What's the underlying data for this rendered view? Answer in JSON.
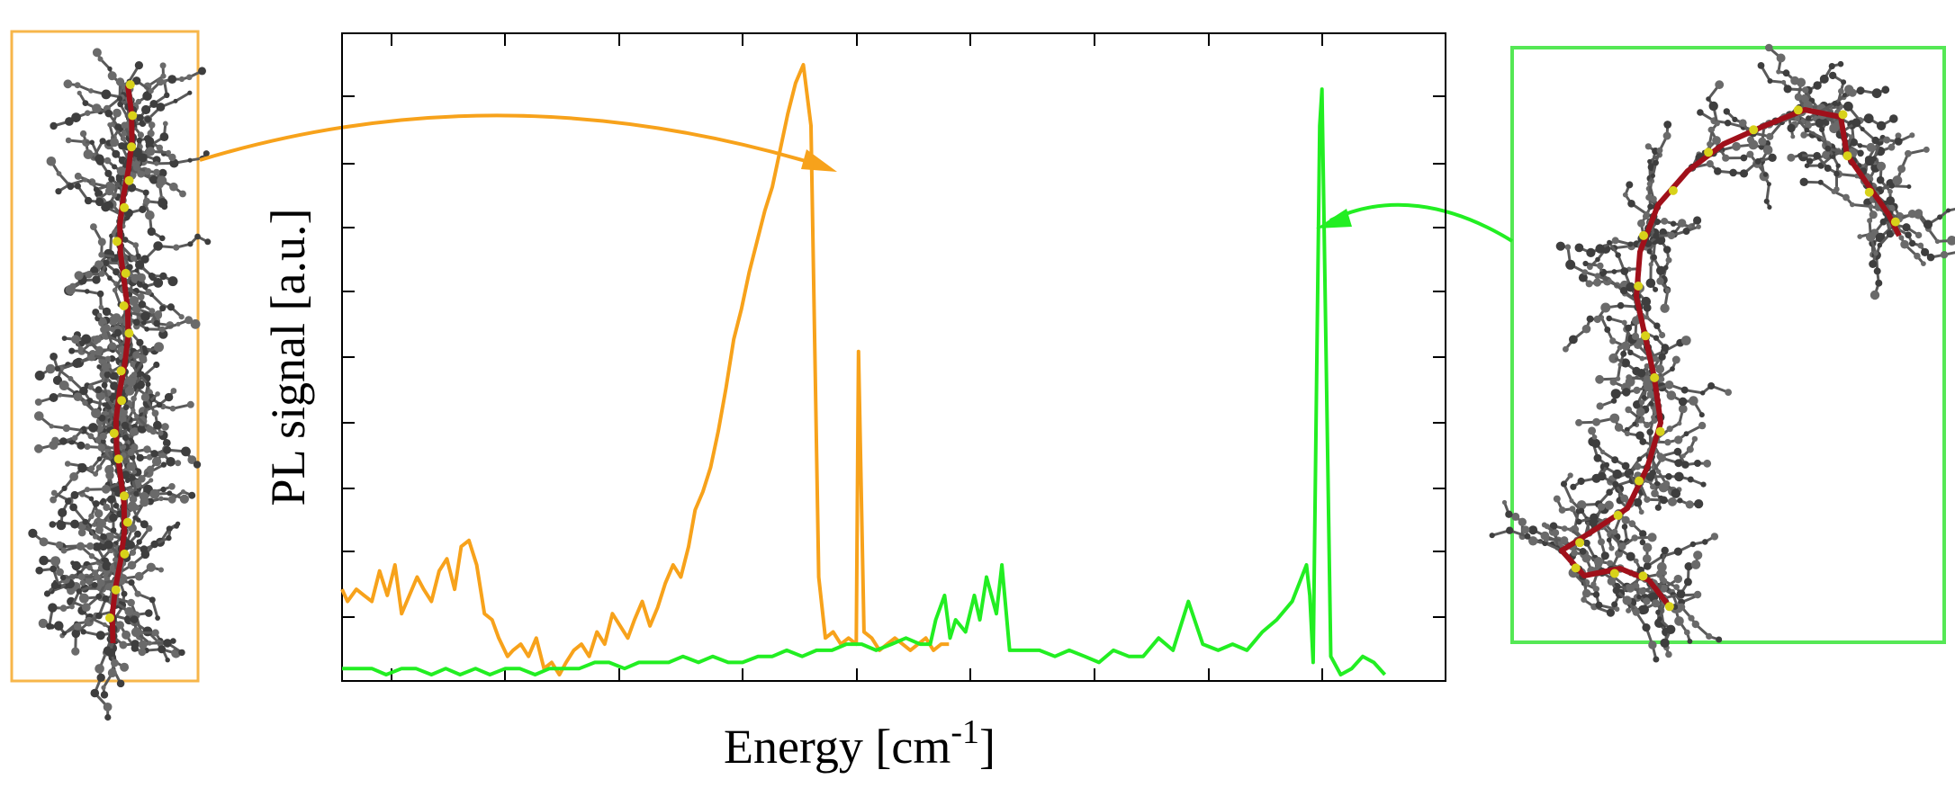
{
  "chart_data": {
    "type": "line",
    "xlabel": "Energy [cm",
    "xlabel_sup": "-1",
    "xlabel_close": "]",
    "ylabel": "PL signal [a.u.]",
    "xlim": [
      0,
      1
    ],
    "ylim": [
      0,
      1
    ],
    "grid": false,
    "tick_labels": false,
    "series": [
      {
        "color": "#f7a21b",
        "x": [
          0.0,
          0.005,
          0.013,
          0.02,
          0.027,
          0.034,
          0.041,
          0.048,
          0.054,
          0.061,
          0.068,
          0.074,
          0.081,
          0.088,
          0.095,
          0.102,
          0.108,
          0.115,
          0.122,
          0.129,
          0.136,
          0.142,
          0.15,
          0.155,
          0.162,
          0.169,
          0.176,
          0.183,
          0.19,
          0.197,
          0.203,
          0.21,
          0.217,
          0.224,
          0.231,
          0.238,
          0.245,
          0.252,
          0.259,
          0.265,
          0.272,
          0.279,
          0.286,
          0.293,
          0.3,
          0.307,
          0.314,
          0.32,
          0.327,
          0.334,
          0.341,
          0.348,
          0.355,
          0.362,
          0.369,
          0.376,
          0.383,
          0.39,
          0.397,
          0.404,
          0.411,
          0.418,
          0.425,
          0.432,
          0.438,
          0.445,
          0.452,
          0.459,
          0.466,
          0.468,
          0.473,
          0.48,
          0.487,
          0.494,
          0.501,
          0.508,
          0.515,
          0.522,
          0.529,
          0.536,
          0.543,
          0.55
        ],
        "y": [
          0.14,
          0.12,
          0.14,
          0.13,
          0.12,
          0.17,
          0.13,
          0.18,
          0.1,
          0.13,
          0.16,
          0.14,
          0.12,
          0.17,
          0.19,
          0.14,
          0.21,
          0.22,
          0.18,
          0.1,
          0.09,
          0.06,
          0.03,
          0.04,
          0.05,
          0.03,
          0.06,
          0.01,
          0.02,
          0.0,
          0.02,
          0.04,
          0.05,
          0.03,
          0.07,
          0.05,
          0.1,
          0.08,
          0.06,
          0.09,
          0.12,
          0.08,
          0.11,
          0.15,
          0.18,
          0.16,
          0.21,
          0.27,
          0.3,
          0.34,
          0.4,
          0.47,
          0.55,
          0.6,
          0.66,
          0.71,
          0.76,
          0.8,
          0.86,
          0.92,
          0.97,
          1.0,
          0.9,
          0.16,
          0.06,
          0.07,
          0.05,
          0.06,
          0.05,
          0.53,
          0.07,
          0.06,
          0.04,
          0.05,
          0.06,
          0.05,
          0.04,
          0.05,
          0.06,
          0.04,
          0.05,
          0.05
        ]
      },
      {
        "color": "#22ee22",
        "x": [
          0.0,
          0.013,
          0.027,
          0.04,
          0.054,
          0.067,
          0.081,
          0.094,
          0.107,
          0.121,
          0.134,
          0.148,
          0.161,
          0.175,
          0.188,
          0.202,
          0.215,
          0.229,
          0.242,
          0.256,
          0.269,
          0.282,
          0.296,
          0.309,
          0.323,
          0.336,
          0.35,
          0.363,
          0.377,
          0.39,
          0.403,
          0.417,
          0.43,
          0.444,
          0.457,
          0.471,
          0.484,
          0.498,
          0.511,
          0.524,
          0.533,
          0.538,
          0.546,
          0.551,
          0.556,
          0.565,
          0.573,
          0.578,
          0.584,
          0.593,
          0.598,
          0.605,
          0.619,
          0.632,
          0.646,
          0.659,
          0.673,
          0.686,
          0.699,
          0.713,
          0.726,
          0.74,
          0.753,
          0.767,
          0.78,
          0.794,
          0.807,
          0.82,
          0.834,
          0.847,
          0.861,
          0.874,
          0.877,
          0.88,
          0.886,
          0.888,
          0.896,
          0.905,
          0.915,
          0.925,
          0.935,
          0.945
        ],
        "y": [
          0.01,
          0.01,
          0.01,
          0.0,
          0.01,
          0.01,
          0.0,
          0.01,
          0.0,
          0.01,
          0.0,
          0.01,
          0.01,
          0.0,
          0.01,
          0.01,
          0.01,
          0.02,
          0.02,
          0.01,
          0.02,
          0.02,
          0.02,
          0.03,
          0.02,
          0.03,
          0.02,
          0.02,
          0.03,
          0.03,
          0.04,
          0.03,
          0.04,
          0.04,
          0.05,
          0.05,
          0.04,
          0.05,
          0.06,
          0.05,
          0.05,
          0.09,
          0.13,
          0.06,
          0.09,
          0.07,
          0.13,
          0.09,
          0.16,
          0.1,
          0.18,
          0.04,
          0.04,
          0.04,
          0.03,
          0.04,
          0.03,
          0.02,
          0.04,
          0.03,
          0.03,
          0.06,
          0.04,
          0.12,
          0.05,
          0.04,
          0.05,
          0.04,
          0.07,
          0.09,
          0.12,
          0.18,
          0.13,
          0.02,
          0.9,
          0.96,
          0.03,
          0.0,
          0.01,
          0.03,
          0.02,
          0.0
        ]
      }
    ]
  },
  "insets": {
    "left": {
      "frame_color": "#f7b64a",
      "arrow_color": "#f7a21b"
    },
    "right": {
      "frame_color": "#55e855",
      "arrow_color": "#22ee22"
    }
  }
}
